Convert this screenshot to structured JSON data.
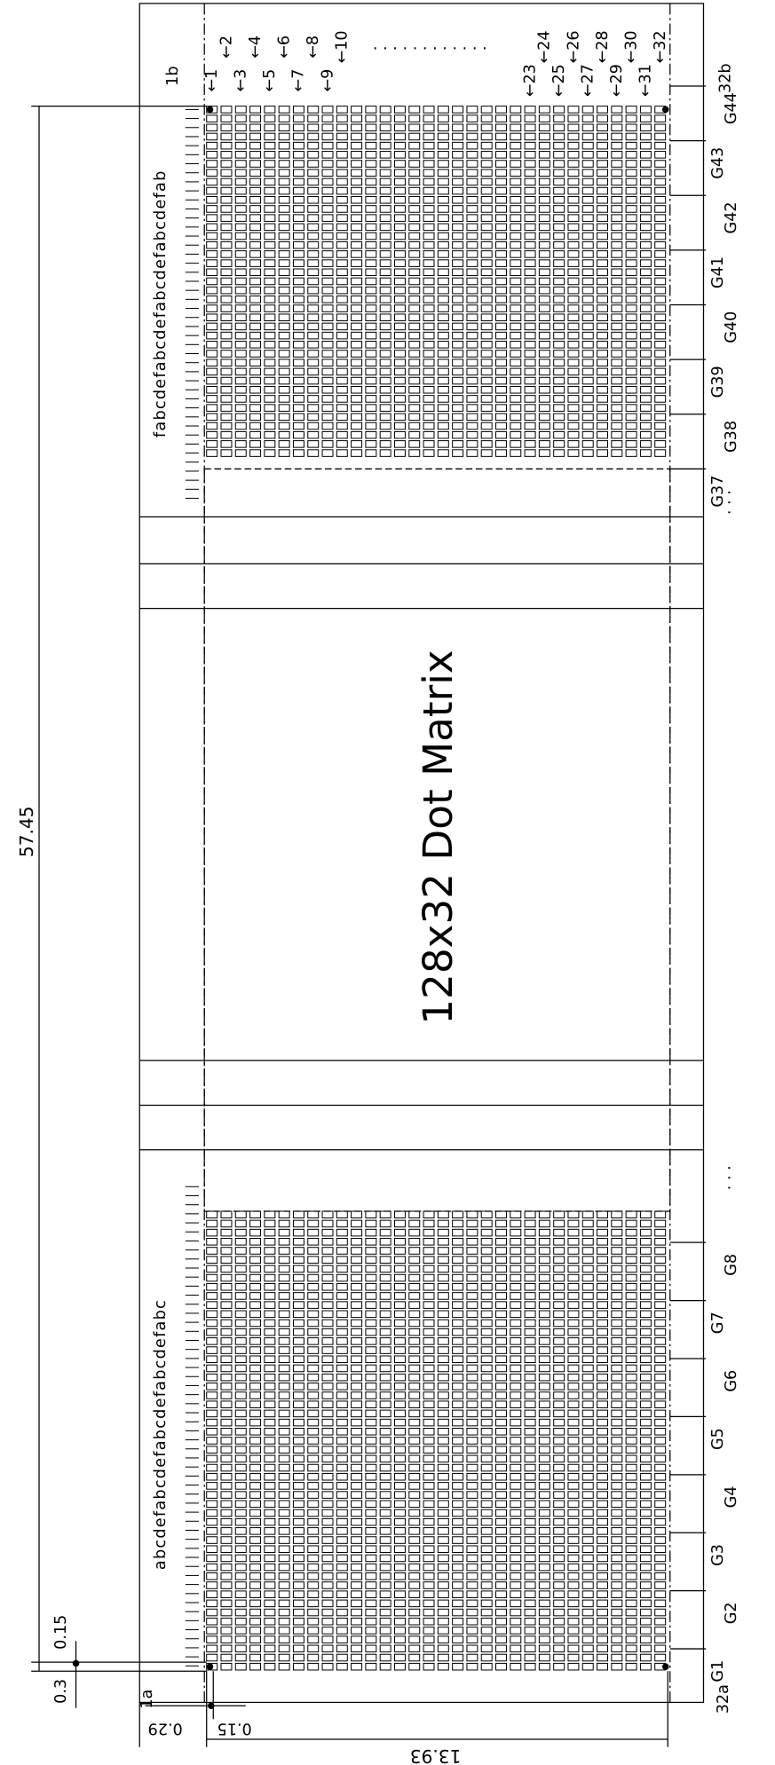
{
  "title": "128x32 Dot Matrix",
  "dimensions": {
    "height": "57.45",
    "top_gap": "0.15",
    "bottom_gap": "0.3",
    "left_gap": "0.29",
    "dot_gap": "0.15",
    "width": "13.93"
  },
  "corner_labels": {
    "bottom_left": "1a",
    "top_left": "1b",
    "bottom_right": "32a",
    "top_right": "32b"
  },
  "column_labels_left": [
    "←1",
    "←2",
    "←3",
    "←4",
    "←5",
    "←6",
    "←7",
    "←8",
    "←9",
    "←10"
  ],
  "column_labels_right": [
    "←23",
    "←24",
    "←25",
    "←26",
    "←27",
    "←28",
    "←29",
    "←30",
    "←31",
    "←32"
  ],
  "column_ellipsis": ". . . . . . . . . . . .",
  "top_segment_letters": "fabcdefabcdefabcdefabcdefab",
  "bottom_segment_letters": "abcdefabcdefabcdefabcdefabc",
  "top_groups": [
    "G44",
    "G43",
    "G42",
    "G41",
    "G40",
    "G39",
    "G38",
    "G37"
  ],
  "bottom_groups": [
    "G8",
    "G7",
    "G6",
    "G5",
    "G4",
    "G3",
    "G2",
    "G1"
  ],
  "group_ellipsis_top": ". . .",
  "group_ellipsis_bottom": ". . ."
}
